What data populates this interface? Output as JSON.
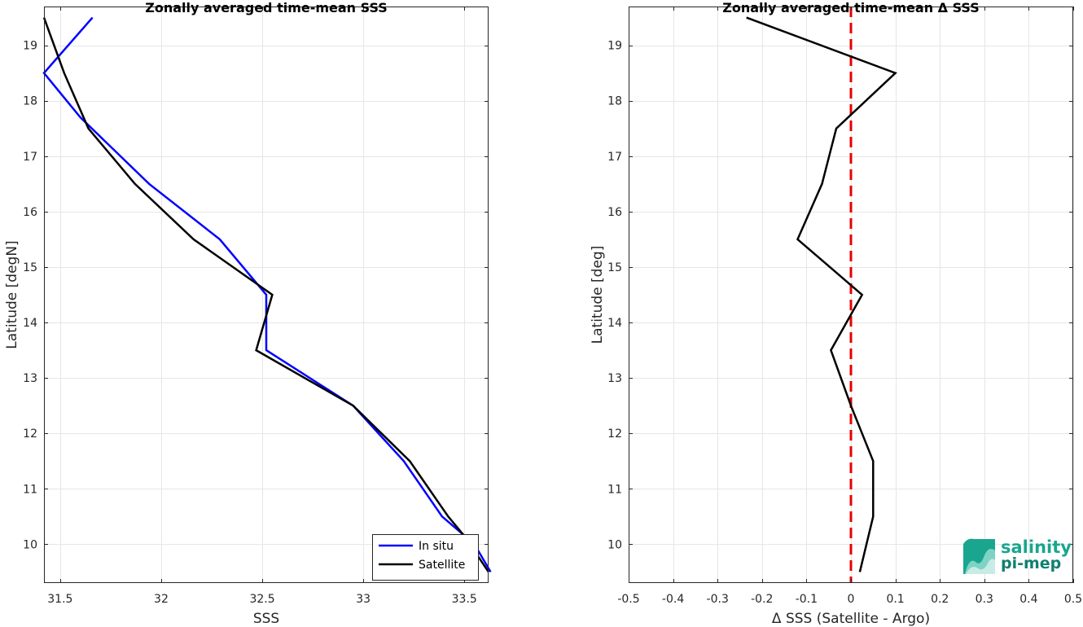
{
  "chart_data": [
    {
      "type": "line",
      "title": "Zonally averaged time-mean SSS",
      "xlabel": "SSS",
      "ylabel": "Latitude [degN]",
      "xlim": [
        31.42,
        33.62
      ],
      "ylim": [
        9.3,
        19.7
      ],
      "xticks": [
        31.5,
        32,
        32.5,
        33,
        33.5
      ],
      "xtick_labels": [
        "31.5",
        "32",
        "32.5",
        "33",
        "33.5"
      ],
      "yticks": [
        10,
        11,
        12,
        13,
        14,
        15,
        16,
        17,
        18,
        19
      ],
      "ytick_labels": [
        "10",
        "11",
        "12",
        "13",
        "14",
        "15",
        "16",
        "17",
        "18",
        "19"
      ],
      "grid": true,
      "legend_position": "bottom-right",
      "series": [
        {
          "name": "In situ",
          "color": "#0000ff",
          "x": [
            33.63,
            33.55,
            33.39,
            33.2,
            32.95,
            32.52,
            32.52,
            32.29,
            31.94,
            31.6,
            31.42,
            31.66
          ],
          "y": [
            9.5,
            10.0,
            10.5,
            11.5,
            12.5,
            13.5,
            14.5,
            15.5,
            16.5,
            17.7,
            18.5,
            19.5
          ]
        },
        {
          "name": "Satellite",
          "color": "#000000",
          "x": [
            33.62,
            33.5,
            33.42,
            33.23,
            32.95,
            32.47,
            32.55,
            32.16,
            31.87,
            31.64,
            31.52,
            31.42
          ],
          "y": [
            9.5,
            10.15,
            10.5,
            11.5,
            12.5,
            13.5,
            14.5,
            15.5,
            16.5,
            17.5,
            18.5,
            19.5
          ]
        }
      ]
    },
    {
      "type": "line",
      "title": "Zonally averaged time-mean Δ SSS",
      "xlabel": "Δ SSS (Satellite - Argo)",
      "ylabel": "Latitude [deg]",
      "xlim": [
        -0.5,
        0.5
      ],
      "ylim": [
        9.3,
        19.7
      ],
      "xticks": [
        -0.5,
        -0.4,
        -0.3,
        -0.2,
        -0.1,
        0,
        0.1,
        0.2,
        0.3,
        0.4,
        0.5
      ],
      "xtick_labels": [
        "-0.5",
        "-0.4",
        "-0.3",
        "-0.2",
        "-0.1",
        "0",
        "0.1",
        "0.2",
        "0.3",
        "0.4",
        "0.5"
      ],
      "yticks": [
        10,
        11,
        12,
        13,
        14,
        15,
        16,
        17,
        18,
        19
      ],
      "ytick_labels": [
        "10",
        "11",
        "12",
        "13",
        "14",
        "15",
        "16",
        "17",
        "18",
        "19"
      ],
      "grid": true,
      "reference_line": {
        "x": 0,
        "color": "#e60000",
        "style": "dashed"
      },
      "series": [
        {
          "color": "#000000",
          "x": [
            0.02,
            0.05,
            0.05,
            0.0,
            -0.045,
            0.025,
            -0.12,
            -0.065,
            -0.033,
            0.1,
            -0.235
          ],
          "y": [
            9.5,
            10.5,
            11.5,
            12.5,
            13.5,
            14.5,
            15.5,
            16.5,
            17.5,
            18.5,
            19.5
          ]
        }
      ]
    }
  ],
  "logo": {
    "line1": "salinity",
    "line2": "pi-mep",
    "color": "#1aa58f"
  }
}
